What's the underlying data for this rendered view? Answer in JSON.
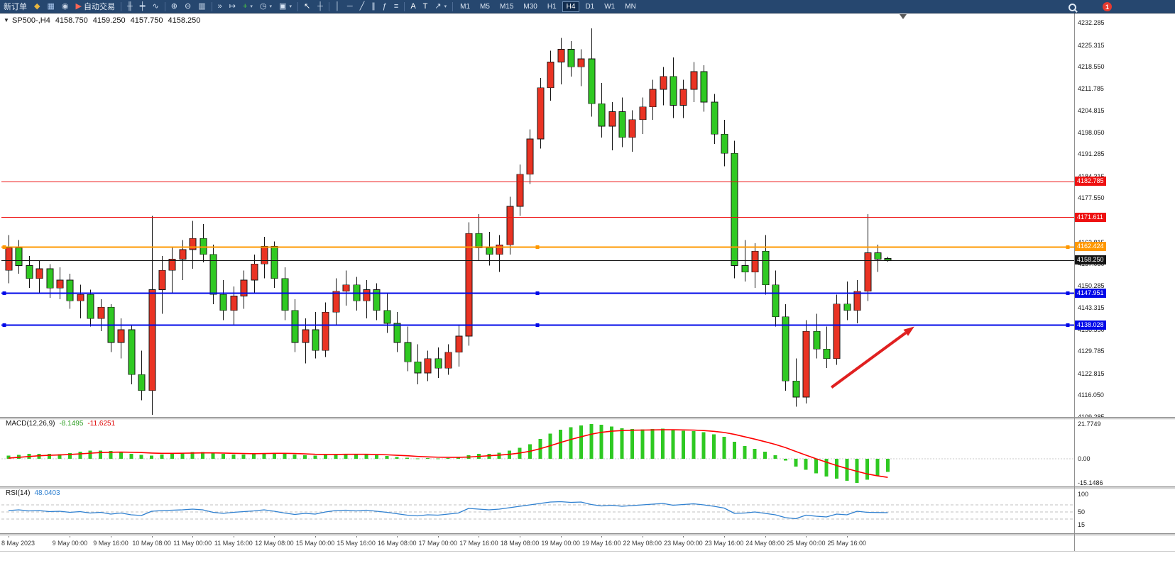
{
  "toolbar": {
    "items": [
      {
        "name": "new-order-button",
        "type": "button",
        "label": "新订单"
      },
      {
        "name": "mql5-icon",
        "type": "icon",
        "glyph": "◆",
        "color": "#e7b63e"
      },
      {
        "name": "charts-window-icon",
        "type": "icon",
        "glyph": "▦",
        "color": "#a9c7ee"
      },
      {
        "name": "profile-icon",
        "type": "icon",
        "glyph": "◉",
        "color": "#c7d3e4"
      },
      {
        "name": "algo-trading-button",
        "type": "button",
        "label": "自动交易",
        "glyph": "▶",
        "glyph_color": "#ff6655"
      },
      {
        "type": "sep"
      },
      {
        "name": "bar-chart-icon",
        "type": "icon",
        "glyph": "╫",
        "color": "#d5e3f4"
      },
      {
        "name": "candlestick-chart-icon",
        "type": "icon",
        "glyph": "╪",
        "color": "#d5e3f4"
      },
      {
        "name": "line-chart-icon",
        "type": "icon",
        "glyph": "∿",
        "color": "#d5e3f4"
      },
      {
        "type": "sep"
      },
      {
        "name": "zoom-in-icon",
        "type": "icon",
        "glyph": "⊕",
        "color": "#d5e3f4"
      },
      {
        "name": "zoom-out-icon",
        "type": "icon",
        "glyph": "⊖",
        "color": "#d5e3f4"
      },
      {
        "name": "tile-windows-icon",
        "type": "icon",
        "glyph": "▥",
        "color": "#d5e3f4"
      },
      {
        "type": "sep"
      },
      {
        "name": "auto-scroll-icon",
        "type": "icon",
        "glyph": "»",
        "color": "#d5e3f4"
      },
      {
        "name": "chart-shift-icon",
        "type": "icon",
        "glyph": "↦",
        "color": "#d5e3f4"
      },
      {
        "name": "indicators-button",
        "type": "icon",
        "glyph": "+",
        "color": "#4fd43c",
        "dropdown": true
      },
      {
        "name": "periods-button",
        "type": "icon",
        "glyph": "◷",
        "color": "#d5e3f4",
        "dropdown": true
      },
      {
        "name": "templates-button",
        "type": "icon",
        "glyph": "▣",
        "color": "#d5e3f4",
        "dropdown": true
      },
      {
        "type": "sep"
      },
      {
        "name": "cursor-icon",
        "type": "icon",
        "glyph": "↖",
        "color": "#ffffff"
      },
      {
        "name": "crosshair-icon",
        "type": "icon",
        "glyph": "┼",
        "color": "#d5e3f4"
      },
      {
        "type": "sep"
      },
      {
        "name": "vertical-line-icon",
        "type": "icon",
        "glyph": "│",
        "color": "#d5e3f4"
      },
      {
        "name": "horizontal-line-icon",
        "type": "icon",
        "glyph": "─",
        "color": "#d5e3f4"
      },
      {
        "name": "trendline-icon",
        "type": "icon",
        "glyph": "╱",
        "color": "#d5e3f4"
      },
      {
        "name": "channel-icon",
        "type": "icon",
        "glyph": "∥",
        "color": "#d5e3f4"
      },
      {
        "name": "fibonacci-icon",
        "type": "icon",
        "glyph": "ƒ",
        "color": "#d5e3f4"
      },
      {
        "name": "levels-icon",
        "type": "icon",
        "glyph": "≡",
        "color": "#d5e3f4"
      },
      {
        "type": "sep"
      },
      {
        "name": "text-icon",
        "type": "icon",
        "glyph": "A",
        "color": "#ffffff"
      },
      {
        "name": "text-label-icon",
        "type": "icon",
        "glyph": "T",
        "color": "#ffffff"
      },
      {
        "name": "arrows-button",
        "type": "icon",
        "glyph": "↗",
        "color": "#d5e3f4",
        "dropdown": true
      },
      {
        "type": "sep"
      }
    ],
    "timeframes": {
      "items": [
        "M1",
        "M5",
        "M15",
        "M30",
        "H1",
        "H4",
        "D1",
        "W1",
        "MN"
      ],
      "active": "H4"
    },
    "notification_count": "1"
  },
  "chart_header": {
    "symbol": "SP500-,H4",
    "open": "4158.750",
    "high": "4159.250",
    "low": "4157.750",
    "close": "4158.250"
  },
  "chart_data": {
    "type": "candlestick",
    "symbol": "SP500-",
    "period": "H4",
    "colors": {
      "up": "#ea3323",
      "down": "#2fc922",
      "wick": "#141414",
      "macd_histogram": "#2fc922",
      "macd_signal": "#ff0000",
      "rsi_line": "#2f80d0"
    },
    "price_axis": {
      "max": 4232.285,
      "min": 4109.285,
      "ticks": [
        "4232.285",
        "4225.315",
        "4218.550",
        "4211.785",
        "4204.815",
        "4198.050",
        "4191.285",
        "4184.315",
        "4177.550",
        "4170.815",
        "4163.815",
        "4157.050",
        "4150.285",
        "4143.315",
        "4136.550",
        "4129.785",
        "4122.815",
        "4116.050",
        "4109.285"
      ]
    },
    "time_axis": {
      "labels": [
        {
          "t": "8 May 2023",
          "i": 0
        },
        {
          "t": "9 May 00:00",
          "i": 6
        },
        {
          "t": "9 May 16:00",
          "i": 10
        },
        {
          "t": "10 May 08:00",
          "i": 14
        },
        {
          "t": "11 May 00:00",
          "i": 18
        },
        {
          "t": "11 May 16:00",
          "i": 22
        },
        {
          "t": "12 May 08:00",
          "i": 26
        },
        {
          "t": "15 May 00:00",
          "i": 30
        },
        {
          "t": "15 May 16:00",
          "i": 34
        },
        {
          "t": "16 May 08:00",
          "i": 38
        },
        {
          "t": "17 May 00:00",
          "i": 42
        },
        {
          "t": "17 May 16:00",
          "i": 46
        },
        {
          "t": "18 May 08:00",
          "i": 50
        },
        {
          "t": "19 May 00:00",
          "i": 54
        },
        {
          "t": "19 May 16:00",
          "i": 58
        },
        {
          "t": "22 May 08:00",
          "i": 62
        },
        {
          "t": "23 May 00:00",
          "i": 66
        },
        {
          "t": "23 May 16:00",
          "i": 70
        },
        {
          "t": "24 May 08:00",
          "i": 74
        },
        {
          "t": "25 May 00:00",
          "i": 78
        },
        {
          "t": "25 May 16:00",
          "i": 82
        }
      ]
    },
    "candles": [
      [
        4155.0,
        4166.0,
        4151.0,
        4162.0
      ],
      [
        4162.0,
        4164.5,
        4154.0,
        4156.5
      ],
      [
        4156.5,
        4159.5,
        4149.5,
        4152.5
      ],
      [
        4152.5,
        4158.0,
        4148.0,
        4155.5
      ],
      [
        4155.5,
        4157.0,
        4146.5,
        4149.5
      ],
      [
        4149.5,
        4156.0,
        4146.0,
        4152.0
      ],
      [
        4152.0,
        4154.0,
        4143.0,
        4145.5
      ],
      [
        4145.5,
        4150.5,
        4140.0,
        4147.5
      ],
      [
        4147.5,
        4149.0,
        4137.5,
        4140.0
      ],
      [
        4140.0,
        4146.0,
        4136.0,
        4143.5
      ],
      [
        4143.5,
        4144.5,
        4129.5,
        4132.5
      ],
      [
        4132.5,
        4140.0,
        4127.5,
        4136.5
      ],
      [
        4136.5,
        4138.0,
        4119.5,
        4122.5
      ],
      [
        4122.5,
        4130.0,
        4114.5,
        4117.5
      ],
      [
        4117.5,
        4172.0,
        4110.0,
        4149.0
      ],
      [
        4149.0,
        4159.5,
        4141.5,
        4155.0
      ],
      [
        4155.0,
        4162.0,
        4148.0,
        4158.5
      ],
      [
        4158.5,
        4164.5,
        4152.0,
        4161.5
      ],
      [
        4161.5,
        4170.5,
        4155.5,
        4165.0
      ],
      [
        4165.0,
        4169.5,
        4157.5,
        4160.0
      ],
      [
        4160.0,
        4163.0,
        4144.5,
        4147.5
      ],
      [
        4147.5,
        4152.0,
        4139.5,
        4142.5
      ],
      [
        4142.5,
        4150.0,
        4138.0,
        4147.0
      ],
      [
        4147.0,
        4155.0,
        4143.0,
        4152.0
      ],
      [
        4152.0,
        4160.0,
        4148.0,
        4157.0
      ],
      [
        4157.0,
        4165.5,
        4152.5,
        4162.5
      ],
      [
        4162.5,
        4164.0,
        4149.5,
        4152.5
      ],
      [
        4152.5,
        4156.0,
        4139.5,
        4142.5
      ],
      [
        4142.5,
        4146.0,
        4129.5,
        4132.5
      ],
      [
        4132.5,
        4140.0,
        4126.0,
        4136.5
      ],
      [
        4136.5,
        4142.0,
        4127.5,
        4130.0
      ],
      [
        4130.0,
        4145.0,
        4128.0,
        4142.0
      ],
      [
        4142.0,
        4152.5,
        4138.0,
        4148.5
      ],
      [
        4148.5,
        4155.0,
        4144.0,
        4150.5
      ],
      [
        4150.5,
        4153.0,
        4142.5,
        4145.5
      ],
      [
        4145.5,
        4152.0,
        4140.0,
        4149.0
      ],
      [
        4149.0,
        4151.0,
        4139.5,
        4142.5
      ],
      [
        4142.5,
        4148.0,
        4135.5,
        4138.5
      ],
      [
        4138.5,
        4142.0,
        4129.5,
        4132.5
      ],
      [
        4132.5,
        4137.5,
        4123.5,
        4126.5
      ],
      [
        4126.5,
        4132.0,
        4119.5,
        4123.0
      ],
      [
        4123.0,
        4130.0,
        4120.5,
        4127.5
      ],
      [
        4127.5,
        4131.0,
        4121.5,
        4124.5
      ],
      [
        4124.5,
        4132.0,
        4122.5,
        4129.5
      ],
      [
        4129.5,
        4138.0,
        4125.0,
        4134.5
      ],
      [
        4134.5,
        4170.0,
        4131.5,
        4166.5
      ],
      [
        4166.5,
        4172.5,
        4158.0,
        4162.0
      ],
      [
        4162.0,
        4167.0,
        4156.5,
        4160.0
      ],
      [
        4160.0,
        4166.0,
        4154.5,
        4163.0
      ],
      [
        4163.0,
        4178.0,
        4160.0,
        4175.0
      ],
      [
        4175.0,
        4188.0,
        4172.0,
        4185.0
      ],
      [
        4185.0,
        4199.0,
        4182.0,
        4196.0
      ],
      [
        4196.0,
        4215.0,
        4193.0,
        4212.0
      ],
      [
        4212.0,
        4223.5,
        4208.0,
        4220.0
      ],
      [
        4220.0,
        4227.5,
        4213.0,
        4224.0
      ],
      [
        4224.0,
        4226.5,
        4215.5,
        4218.5
      ],
      [
        4218.5,
        4224.0,
        4212.5,
        4221.0
      ],
      [
        4221.0,
        4230.5,
        4203.0,
        4207.0
      ],
      [
        4207.0,
        4213.5,
        4196.5,
        4200.0
      ],
      [
        4200.0,
        4207.5,
        4192.5,
        4204.5
      ],
      [
        4204.5,
        4209.0,
        4193.5,
        4196.5
      ],
      [
        4196.5,
        4205.0,
        4192.0,
        4202.0
      ],
      [
        4202.0,
        4209.0,
        4197.5,
        4206.0
      ],
      [
        4206.0,
        4214.5,
        4202.0,
        4211.5
      ],
      [
        4211.5,
        4218.5,
        4206.5,
        4215.5
      ],
      [
        4215.5,
        4221.5,
        4202.5,
        4206.5
      ],
      [
        4206.5,
        4214.5,
        4202.5,
        4211.5
      ],
      [
        4211.5,
        4220.0,
        4207.5,
        4217.0
      ],
      [
        4217.0,
        4219.0,
        4204.5,
        4207.5
      ],
      [
        4207.5,
        4210.0,
        4194.5,
        4197.5
      ],
      [
        4197.5,
        4202.0,
        4187.5,
        4191.5
      ],
      [
        4191.5,
        4195.5,
        4152.5,
        4156.5
      ],
      [
        4156.5,
        4164.5,
        4151.5,
        4154.5
      ],
      [
        4154.5,
        4163.5,
        4149.5,
        4161.0
      ],
      [
        4161.0,
        4166.0,
        4147.5,
        4150.5
      ],
      [
        4150.5,
        4155.0,
        4137.5,
        4140.5
      ],
      [
        4140.5,
        4144.5,
        4117.5,
        4120.5
      ],
      [
        4120.5,
        4127.5,
        4112.5,
        4115.5
      ],
      [
        4115.5,
        4139.5,
        4113.5,
        4136.0
      ],
      [
        4136.0,
        4141.5,
        4127.5,
        4130.5
      ],
      [
        4130.5,
        4137.5,
        4124.5,
        4127.5
      ],
      [
        4127.5,
        4147.5,
        4125.5,
        4144.5
      ],
      [
        4144.5,
        4151.5,
        4139.5,
        4142.5
      ],
      [
        4142.5,
        4152.0,
        4138.5,
        4148.5
      ],
      [
        4148.5,
        4172.5,
        4145.5,
        4160.5
      ],
      [
        4160.5,
        4163.0,
        4154.5,
        4158.5
      ],
      [
        4158.75,
        4159.25,
        4157.75,
        4158.25
      ]
    ],
    "hlines": [
      {
        "label": "4182.785",
        "price": 4182.785,
        "color": "#ee1111",
        "width": 1,
        "handles": false
      },
      {
        "label": "4171.611",
        "price": 4171.611,
        "color": "#ee1111",
        "width": 1,
        "handles": false
      },
      {
        "label": "4162.424",
        "price": 4162.424,
        "color": "#ff9800",
        "width": 2,
        "handles": true
      },
      {
        "label": "4158.250",
        "price": 4158.25,
        "color": "#151515",
        "width": 1,
        "handles": false
      },
      {
        "label": "4147.951",
        "price": 4147.951,
        "color": "#0008e8",
        "width": 2,
        "handles": true
      },
      {
        "label": "4138.028",
        "price": 4138.028,
        "color": "#0008e8",
        "width": 2,
        "handles": true
      }
    ],
    "trend_arrow": {
      "from": {
        "i": 80.5,
        "price": 4118.5
      },
      "to": {
        "i": 88.6,
        "price": 4137.5
      },
      "color": "#e02020"
    },
    "shift_marker": {
      "i": 87.5
    },
    "indicators": {
      "macd": {
        "name": "MACD(12,26,9)",
        "value_main": "-8.1495",
        "value_signal": "-11.6251",
        "axis_ticks": [
          "21.7749",
          "0.00",
          "-15.1486"
        ],
        "histogram": [
          2.0,
          2.5,
          3.0,
          3.2,
          3.0,
          2.8,
          3.5,
          4.5,
          5.0,
          5.2,
          4.8,
          4.2,
          3.2,
          2.4,
          2.0,
          2.6,
          3.2,
          3.8,
          4.2,
          4.2,
          3.6,
          3.0,
          2.6,
          2.6,
          3.0,
          3.5,
          3.6,
          3.2,
          2.6,
          2.2,
          2.0,
          2.4,
          2.9,
          3.1,
          2.8,
          2.7,
          2.3,
          1.8,
          1.2,
          0.6,
          0.3,
          0.4,
          0.3,
          0.4,
          0.8,
          2.2,
          3.0,
          3.2,
          3.8,
          5.0,
          6.8,
          9.2,
          12.5,
          15.8,
          18.2,
          19.8,
          20.8,
          21.7,
          21.3,
          20.2,
          19.2,
          18.6,
          18.4,
          18.6,
          18.8,
          18.2,
          17.6,
          17.4,
          16.6,
          15.4,
          13.8,
          10.6,
          8.0,
          6.2,
          4.4,
          2.2,
          -1.2,
          -4.8,
          -6.8,
          -9.2,
          -11.0,
          -12.4,
          -13.8,
          -15.15,
          -13.0,
          -10.5,
          -8.15
        ],
        "signal": [
          0.4,
          0.9,
          1.4,
          1.9,
          2.2,
          2.4,
          2.7,
          3.1,
          3.5,
          3.9,
          4.1,
          4.2,
          4.1,
          3.9,
          3.6,
          3.4,
          3.4,
          3.5,
          3.6,
          3.7,
          3.7,
          3.6,
          3.4,
          3.3,
          3.2,
          3.3,
          3.4,
          3.4,
          3.3,
          3.1,
          2.8,
          2.7,
          2.7,
          2.8,
          2.8,
          2.8,
          2.7,
          2.5,
          2.2,
          1.9,
          1.5,
          1.2,
          1.0,
          0.9,
          0.9,
          1.1,
          1.5,
          1.9,
          2.3,
          2.8,
          3.6,
          4.7,
          6.3,
          8.2,
          10.2,
          12.1,
          13.8,
          15.4,
          16.6,
          17.3,
          17.7,
          17.9,
          18.0,
          18.1,
          18.2,
          18.2,
          18.1,
          18.0,
          17.7,
          17.2,
          16.5,
          15.3,
          13.8,
          12.3,
          10.7,
          9.0,
          7.0,
          4.6,
          2.3,
          0.0,
          -2.1,
          -4.2,
          -6.1,
          -7.9,
          -9.5,
          -10.7,
          -11.63
        ]
      },
      "rsi": {
        "name": "RSI(14)",
        "value": "48.0403",
        "axis_ticks": [
          "100",
          "50",
          "15"
        ],
        "levels": [
          70,
          30
        ],
        "values": [
          54,
          56,
          53,
          54,
          51,
          52,
          49,
          51,
          47,
          49,
          44,
          47,
          42,
          40,
          52,
          54,
          55,
          56,
          58,
          56,
          49,
          46,
          49,
          51,
          53,
          56,
          52,
          47,
          43,
          46,
          44,
          50,
          54,
          55,
          53,
          55,
          52,
          49,
          45,
          41,
          39,
          42,
          41,
          44,
          47,
          60,
          58,
          56,
          58,
          62,
          66,
          70,
          74,
          78,
          79,
          77,
          78,
          71,
          67,
          69,
          66,
          68,
          70,
          72,
          74,
          69,
          71,
          73,
          70,
          66,
          61,
          46,
          47,
          50,
          46,
          42,
          34,
          31,
          41,
          38,
          36,
          44,
          42,
          52,
          49,
          48.5,
          48.04
        ]
      }
    }
  }
}
